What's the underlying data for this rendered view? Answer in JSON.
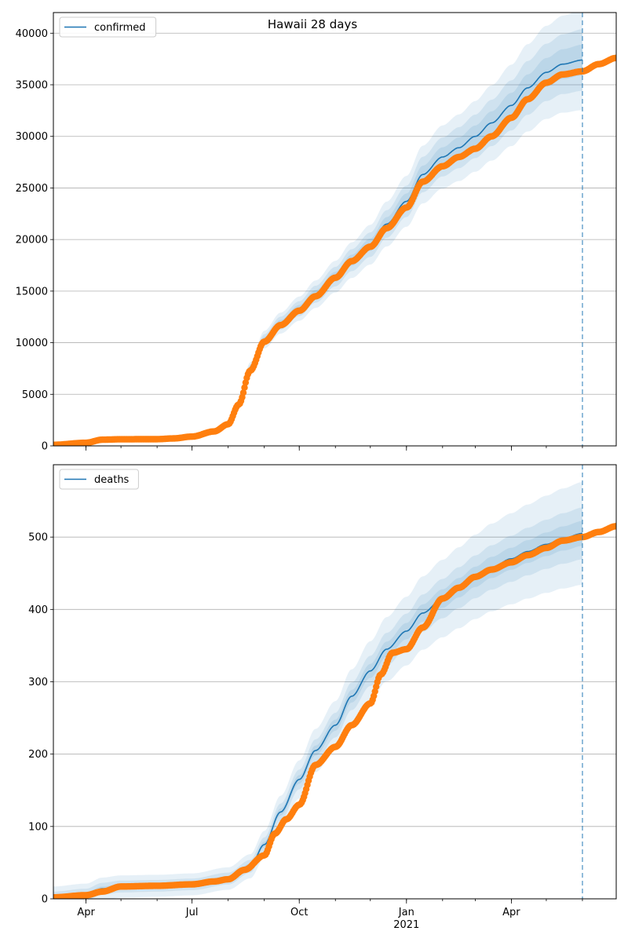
{
  "chart_data": {
    "type": "line",
    "title": "Hawaii 28 days",
    "x_ticks": [
      {
        "date": "2020-04-01",
        "label": "Apr",
        "sub": ""
      },
      {
        "date": "2020-07-01",
        "label": "Jul",
        "sub": ""
      },
      {
        "date": "2020-10-01",
        "label": "Oct",
        "sub": ""
      },
      {
        "date": "2021-01-01",
        "label": "Jan",
        "sub": "2021"
      },
      {
        "date": "2021-04-01",
        "label": "Apr",
        "sub": ""
      }
    ],
    "xlim": [
      "2020-03-04",
      "2021-06-30"
    ],
    "forecast_date": "2021-06-01",
    "colors": {
      "model": "#1f77b4",
      "observed": "#ff7f0e",
      "band": "#1f77b4",
      "grid": "#b0b0b0"
    },
    "panels": [
      {
        "legend": "confirmed",
        "ylim": [
          0,
          42000
        ],
        "yticks": [
          0,
          5000,
          10000,
          15000,
          20000,
          25000,
          30000,
          35000,
          40000
        ],
        "fit": [
          [
            "2020-03-04",
            100
          ],
          [
            "2020-04-15",
            450
          ],
          [
            "2020-05-01",
            600
          ],
          [
            "2020-06-01",
            620
          ],
          [
            "2020-06-15",
            700
          ],
          [
            "2020-07-01",
            900
          ],
          [
            "2020-07-20",
            1400
          ],
          [
            "2020-08-01",
            2200
          ],
          [
            "2020-08-10",
            4200
          ],
          [
            "2020-08-20",
            7500
          ],
          [
            "2020-09-01",
            10300
          ],
          [
            "2020-09-15",
            11900
          ],
          [
            "2020-10-01",
            13300
          ],
          [
            "2020-10-15",
            14700
          ],
          [
            "2020-11-01",
            16400
          ],
          [
            "2020-11-15",
            18000
          ],
          [
            "2020-12-01",
            19500
          ],
          [
            "2020-12-15",
            21500
          ],
          [
            "2021-01-01",
            23700
          ],
          [
            "2021-01-15",
            26300
          ],
          [
            "2021-02-01",
            28000
          ],
          [
            "2021-02-15",
            28900
          ],
          [
            "2021-03-01",
            30000
          ],
          [
            "2021-03-15",
            31300
          ],
          [
            "2021-04-01",
            33000
          ],
          [
            "2021-04-15",
            34700
          ],
          [
            "2021-05-01",
            36200
          ],
          [
            "2021-05-15",
            37000
          ],
          [
            "2021-06-01",
            37400
          ]
        ],
        "band_frac": [
          0.04,
          0.08,
          0.13
        ],
        "observed": [
          [
            "2020-03-04",
            100
          ],
          [
            "2020-04-01",
            300
          ],
          [
            "2020-04-15",
            600
          ],
          [
            "2020-05-01",
            640
          ],
          [
            "2020-06-01",
            650
          ],
          [
            "2020-06-15",
            720
          ],
          [
            "2020-07-01",
            900
          ],
          [
            "2020-07-20",
            1400
          ],
          [
            "2020-08-01",
            2100
          ],
          [
            "2020-08-10",
            4000
          ],
          [
            "2020-08-20",
            7300
          ],
          [
            "2020-09-01",
            10100
          ],
          [
            "2020-09-15",
            11700
          ],
          [
            "2020-10-01",
            13100
          ],
          [
            "2020-10-15",
            14500
          ],
          [
            "2020-11-01",
            16300
          ],
          [
            "2020-11-15",
            17900
          ],
          [
            "2020-12-01",
            19300
          ],
          [
            "2020-12-15",
            21100
          ],
          [
            "2021-01-01",
            23100
          ],
          [
            "2021-01-15",
            25600
          ],
          [
            "2021-02-01",
            27100
          ],
          [
            "2021-02-15",
            28000
          ],
          [
            "2021-03-01",
            28800
          ],
          [
            "2021-03-15",
            30000
          ],
          [
            "2021-04-01",
            31800
          ],
          [
            "2021-04-15",
            33600
          ],
          [
            "2021-05-01",
            35200
          ],
          [
            "2021-05-15",
            36000
          ],
          [
            "2021-06-01",
            36300
          ],
          [
            "2021-06-15",
            37000
          ],
          [
            "2021-06-30",
            37600
          ]
        ]
      },
      {
        "legend": "deaths",
        "ylim": [
          0,
          600
        ],
        "yticks": [
          0,
          100,
          200,
          300,
          400,
          500
        ],
        "fit": [
          [
            "2020-03-04",
            2
          ],
          [
            "2020-04-01",
            6
          ],
          [
            "2020-04-15",
            14
          ],
          [
            "2020-05-01",
            17
          ],
          [
            "2020-06-01",
            18
          ],
          [
            "2020-07-01",
            20
          ],
          [
            "2020-08-01",
            28
          ],
          [
            "2020-08-20",
            45
          ],
          [
            "2020-09-01",
            75
          ],
          [
            "2020-09-15",
            120
          ],
          [
            "2020-10-01",
            165
          ],
          [
            "2020-10-15",
            205
          ],
          [
            "2020-11-01",
            240
          ],
          [
            "2020-11-15",
            280
          ],
          [
            "2020-12-01",
            315
          ],
          [
            "2020-12-15",
            345
          ],
          [
            "2021-01-01",
            370
          ],
          [
            "2021-01-15",
            395
          ],
          [
            "2021-02-01",
            415
          ],
          [
            "2021-02-15",
            430
          ],
          [
            "2021-03-01",
            445
          ],
          [
            "2021-03-15",
            458
          ],
          [
            "2021-04-01",
            470
          ],
          [
            "2021-04-15",
            480
          ],
          [
            "2021-05-01",
            490
          ],
          [
            "2021-05-15",
            498
          ],
          [
            "2021-06-01",
            505
          ]
        ],
        "band_abs": [
          [
            0.03,
            3
          ],
          [
            0.06,
            8
          ],
          [
            0.12,
            15
          ]
        ],
        "observed": [
          [
            "2020-03-04",
            2
          ],
          [
            "2020-04-01",
            5
          ],
          [
            "2020-04-15",
            10
          ],
          [
            "2020-05-01",
            17
          ],
          [
            "2020-06-01",
            18
          ],
          [
            "2020-07-01",
            20
          ],
          [
            "2020-07-20",
            24
          ],
          [
            "2020-08-01",
            27
          ],
          [
            "2020-08-15",
            40
          ],
          [
            "2020-09-01",
            60
          ],
          [
            "2020-09-10",
            90
          ],
          [
            "2020-09-20",
            110
          ],
          [
            "2020-10-01",
            130
          ],
          [
            "2020-10-15",
            185
          ],
          [
            "2020-11-01",
            210
          ],
          [
            "2020-11-15",
            240
          ],
          [
            "2020-12-01",
            270
          ],
          [
            "2020-12-10",
            310
          ],
          [
            "2020-12-20",
            340
          ],
          [
            "2021-01-01",
            345
          ],
          [
            "2021-01-15",
            375
          ],
          [
            "2021-02-01",
            415
          ],
          [
            "2021-02-15",
            430
          ],
          [
            "2021-03-01",
            445
          ],
          [
            "2021-03-15",
            455
          ],
          [
            "2021-04-01",
            465
          ],
          [
            "2021-04-15",
            475
          ],
          [
            "2021-05-01",
            485
          ],
          [
            "2021-05-15",
            495
          ],
          [
            "2021-06-01",
            500
          ],
          [
            "2021-06-15",
            507
          ],
          [
            "2021-06-30",
            515
          ]
        ]
      }
    ]
  }
}
